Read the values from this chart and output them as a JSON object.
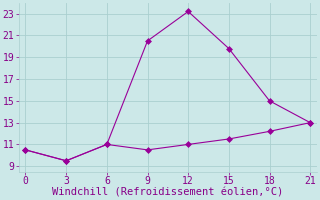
{
  "line1_x": [
    0,
    3,
    6,
    9,
    12,
    15,
    18,
    21
  ],
  "line1_y": [
    10.5,
    9.5,
    11,
    20.5,
    23.2,
    19.8,
    15,
    13
  ],
  "line2_x": [
    0,
    3,
    6,
    9,
    12,
    15,
    18,
    21
  ],
  "line2_y": [
    10.5,
    9.5,
    11,
    10.5,
    11.0,
    11.5,
    12.2,
    13
  ],
  "line_color": "#990099",
  "bg_color": "#cce8e8",
  "grid_color": "#aacfcf",
  "xlabel": "Windchill (Refroidissement éolien,°C)",
  "xlabel_color": "#880088",
  "xlabel_fontsize": 7.5,
  "xlim": [
    -0.5,
    21.5
  ],
  "ylim": [
    8.5,
    24.0
  ],
  "xticks": [
    0,
    3,
    6,
    9,
    12,
    15,
    18,
    21
  ],
  "yticks": [
    9,
    11,
    13,
    15,
    17,
    19,
    21,
    23
  ],
  "tick_color": "#880088",
  "tick_fontsize": 7
}
